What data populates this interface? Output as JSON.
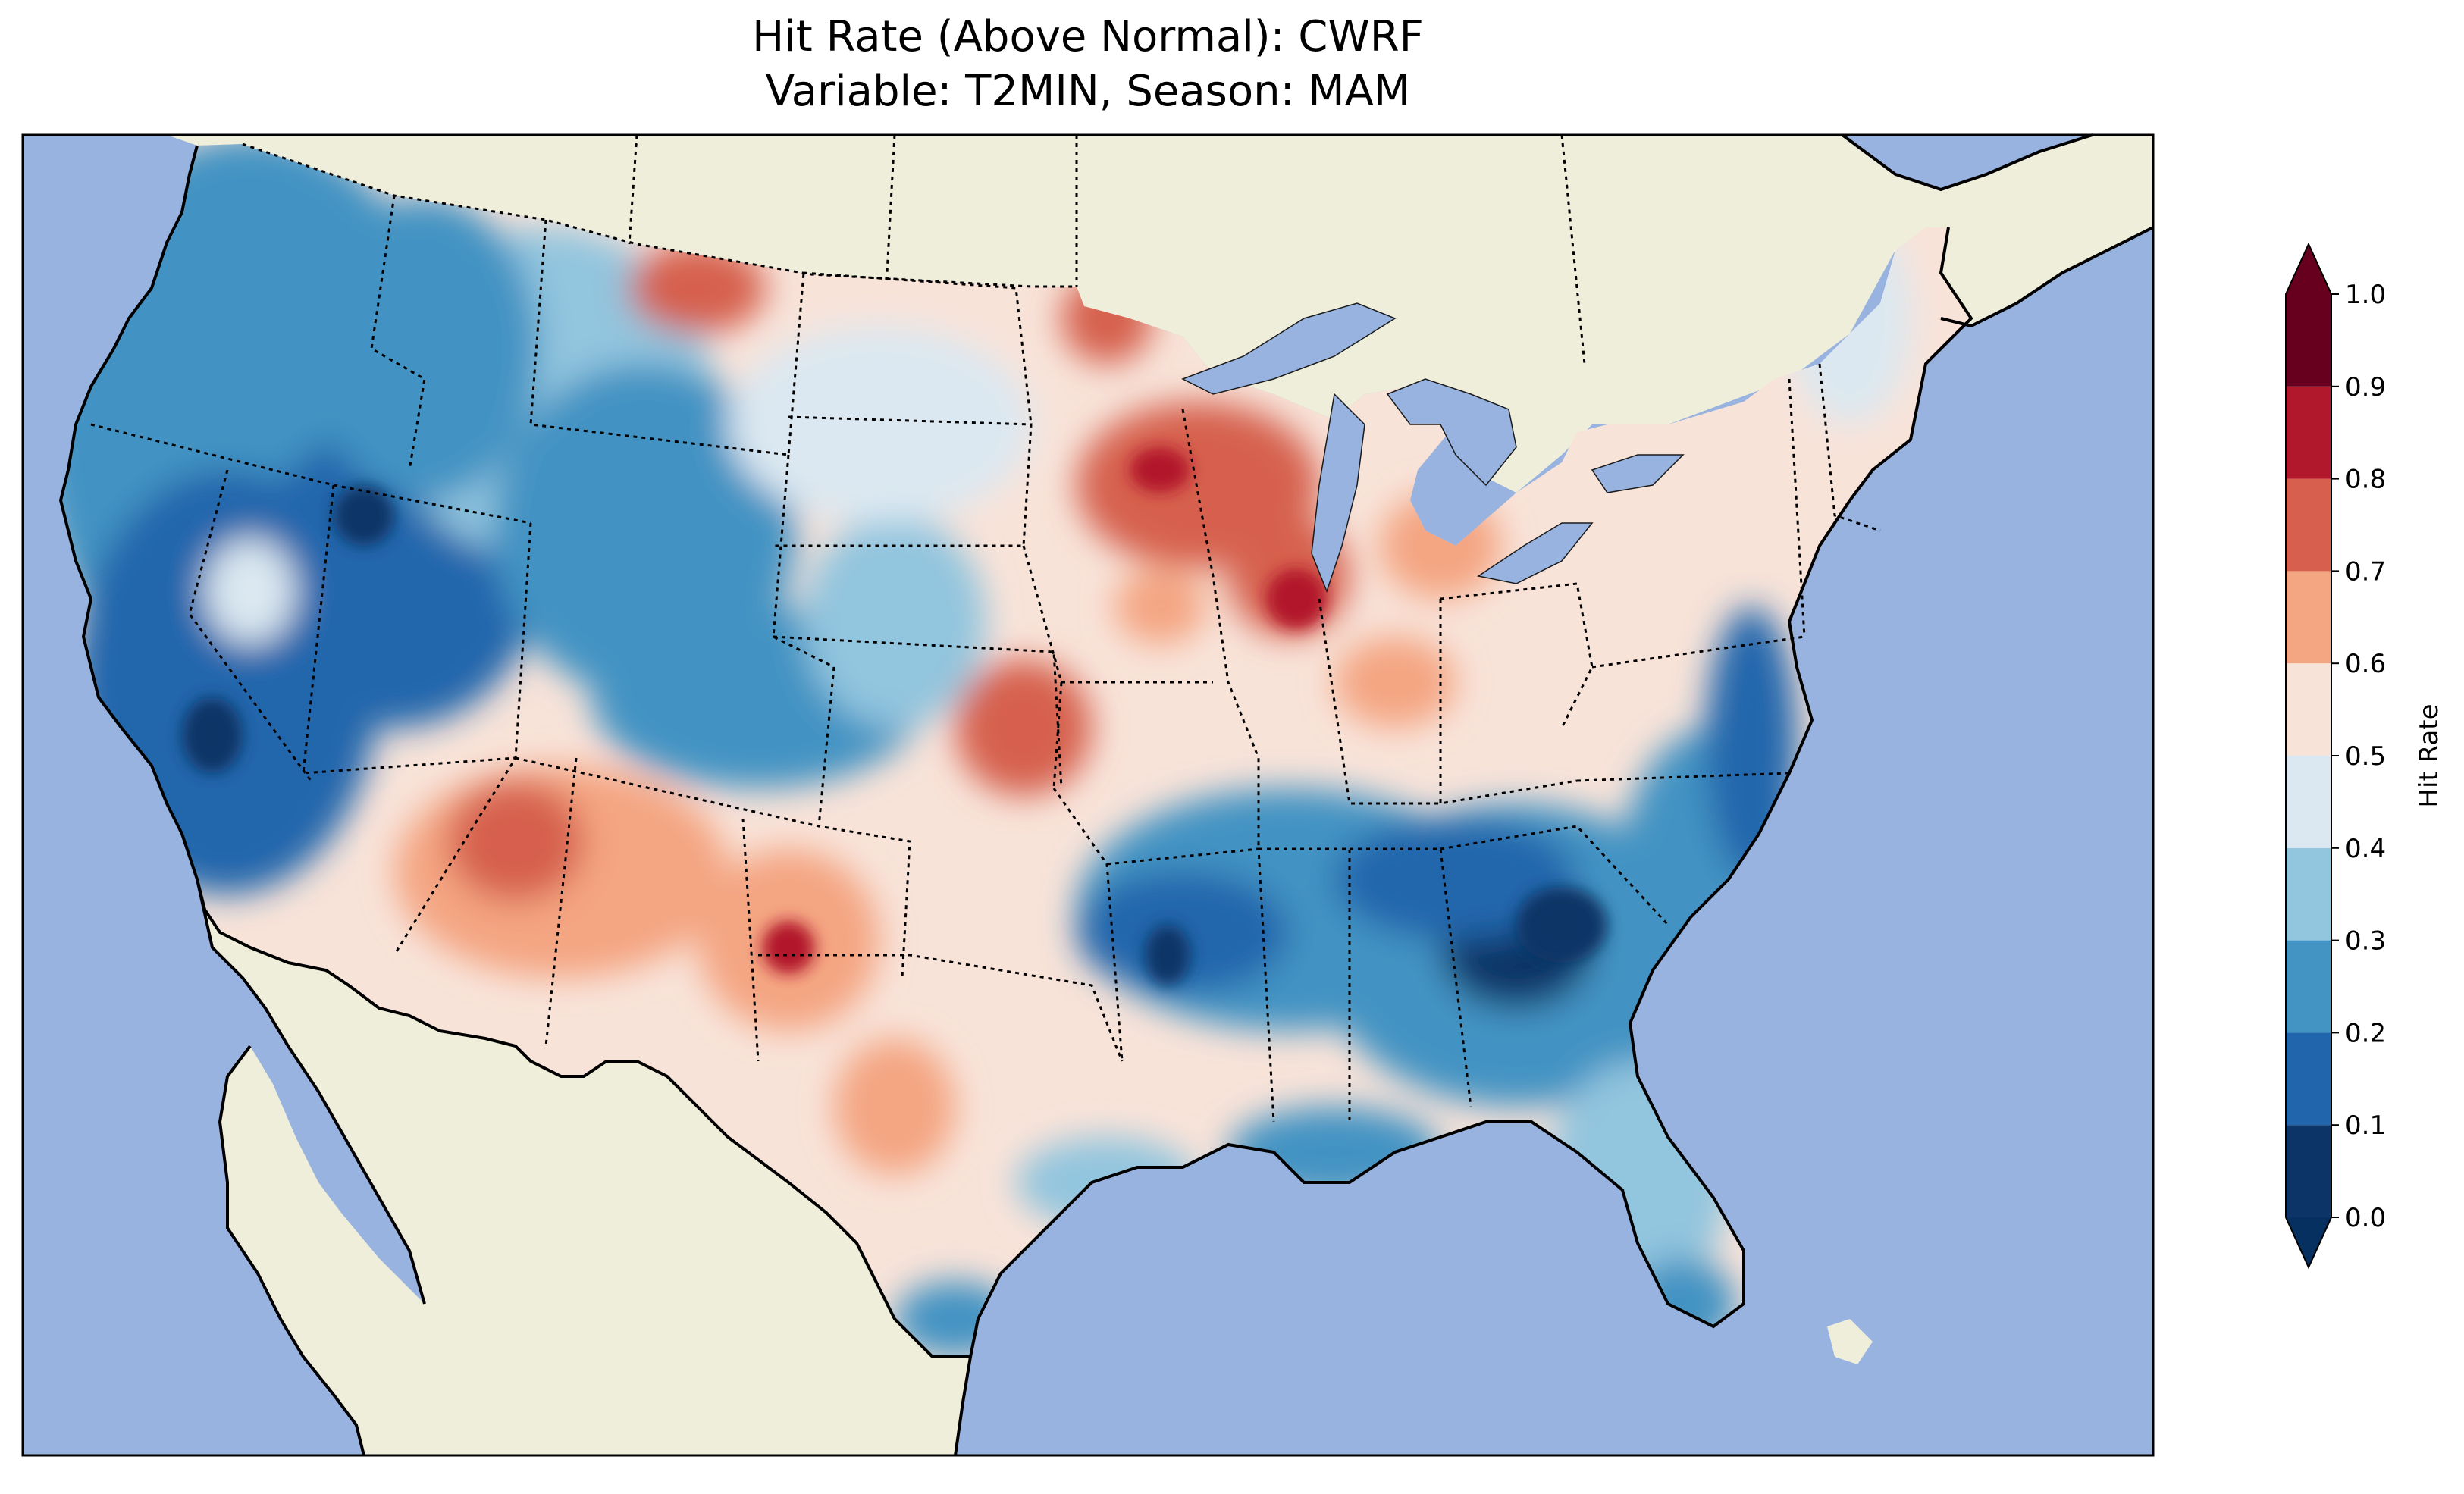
{
  "title": {
    "line1": "Hit Rate (Above Normal): CWRF",
    "line2": "Variable: T2MIN, Season: MAM"
  },
  "colors": {
    "ocean": "#98b3df",
    "land": "#efeedb",
    "lakes": "#98b3df",
    "border": "#000000"
  },
  "colorbar": {
    "label": "Hit Rate",
    "min": 0.0,
    "max": 1.0,
    "extend": "both",
    "ticks": [
      "0.0",
      "0.1",
      "0.2",
      "0.3",
      "0.4",
      "0.5",
      "0.6",
      "0.7",
      "0.8",
      "0.9",
      "1.0"
    ],
    "bins": [
      {
        "range": [
          0.0,
          0.1
        ],
        "color": "#0c3466"
      },
      {
        "range": [
          0.1,
          0.2
        ],
        "color": "#2166ac"
      },
      {
        "range": [
          0.2,
          0.3
        ],
        "color": "#4393c3"
      },
      {
        "range": [
          0.3,
          0.4
        ],
        "color": "#92c5de"
      },
      {
        "range": [
          0.4,
          0.5
        ],
        "color": "#dbe8f1"
      },
      {
        "range": [
          0.5,
          0.6
        ],
        "color": "#f8e3d9"
      },
      {
        "range": [
          0.6,
          0.7
        ],
        "color": "#f4a582"
      },
      {
        "range": [
          0.7,
          0.8
        ],
        "color": "#d6604d"
      },
      {
        "range": [
          0.8,
          0.9
        ],
        "color": "#b2182b"
      },
      {
        "range": [
          0.9,
          1.0
        ],
        "color": "#67001f"
      }
    ],
    "under_color": "#05305f",
    "over_color": "#67001f"
  },
  "map_data": {
    "region": "Contiguous United States",
    "projection": "Lambert Conformal",
    "features": [
      "coastlines",
      "state-borders",
      "country-borders",
      "lakes",
      "ocean",
      "land"
    ],
    "regional_hit_rates": [
      {
        "region": "Pacific Northwest",
        "level": 0.25
      },
      {
        "region": "Northern Rockies",
        "level": 0.3
      },
      {
        "region": "Nevada / Great Basin",
        "level": 0.2
      },
      {
        "region": "California",
        "level": 0.2
      },
      {
        "region": "Northern Montana",
        "level": 0.7
      },
      {
        "region": "Northern Plains",
        "level": 0.5
      },
      {
        "region": "Upper Midwest / Wisconsin",
        "level": 0.75
      },
      {
        "region": "Southwest (Arizona / New Mexico)",
        "level": 0.65
      },
      {
        "region": "West Texas",
        "level": 0.6
      },
      {
        "region": "Kansas",
        "level": 0.65
      },
      {
        "region": "Ohio Valley",
        "level": 0.55
      },
      {
        "region": "Northeast",
        "level": 0.5
      },
      {
        "region": "Lower Mississippi Valley",
        "level": 0.2
      },
      {
        "region": "Georgia / Carolinas",
        "level": 0.1
      },
      {
        "region": "Florida",
        "level": 0.3
      },
      {
        "region": "Gulf Coast",
        "level": 0.3
      }
    ]
  }
}
